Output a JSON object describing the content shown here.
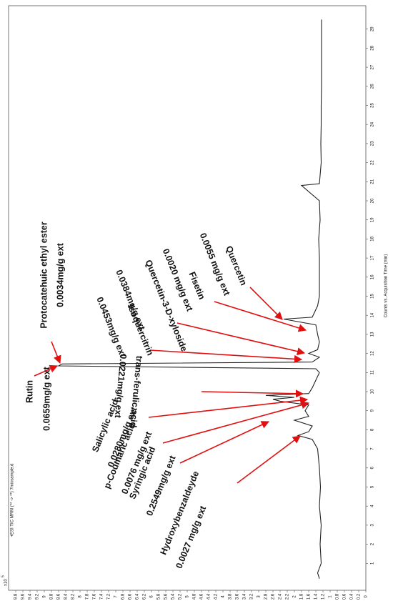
{
  "chart_data": {
    "type": "line",
    "title": "+ESI TIC MRM (** -> **) 7mixsample.d",
    "y_scale": {
      "base": "x10",
      "exponent": "5"
    },
    "xlabel": "Counts vs. Acquisition Time (min)",
    "color": "#222222",
    "x": [
      0.2,
      0.5,
      1,
      2,
      3,
      4,
      5,
      6,
      7,
      7.5,
      7.7,
      7.9,
      8.2,
      8.5,
      8.7,
      9.0,
      9.3,
      9.5,
      9.6,
      9.7,
      9.8,
      9.9,
      10.2,
      10.6,
      11.0,
      11.2,
      11.35,
      11.45,
      11.55,
      11.8,
      12.0,
      12.2,
      12.6,
      13.0,
      13.5,
      13.8,
      13.9,
      14.5,
      15,
      16,
      17,
      18,
      19,
      20,
      20.8,
      20.9,
      22,
      23,
      24,
      25,
      26,
      27,
      28,
      29,
      29.5
    ],
    "values": [
      1.3,
      1.35,
      1.25,
      1.28,
      1.25,
      1.3,
      1.27,
      1.3,
      1.35,
      1.5,
      1.9,
      1.6,
      1.5,
      2.0,
      1.6,
      1.7,
      1.6,
      2.4,
      2.6,
      2.0,
      2.8,
      1.6,
      1.5,
      1.4,
      1.3,
      1.4,
      8.6,
      8.5,
      1.5,
      1.3,
      1.6,
      1.35,
      1.3,
      1.35,
      1.4,
      2.3,
      1.5,
      1.35,
      1.3,
      1.3,
      1.3,
      1.32,
      1.28,
      1.3,
      1.8,
      1.3,
      1.25,
      1.26,
      1.25,
      1.25,
      1.24,
      1.24,
      1.24,
      1.24,
      1.24
    ],
    "xlim": [
      0,
      30
    ],
    "xticks": [
      1,
      2,
      3,
      4,
      5,
      6,
      7,
      8,
      9,
      10,
      11,
      12,
      13,
      14,
      15,
      16,
      17,
      18,
      19,
      20,
      21,
      22,
      23,
      24,
      25,
      26,
      27,
      28,
      29
    ],
    "ylim": [
      0,
      10
    ],
    "yticks": [
      0,
      0.2,
      0.4,
      0.6,
      0.8,
      1,
      1.2,
      1.4,
      1.6,
      1.8,
      2,
      2.2,
      2.4,
      2.6,
      2.8,
      3,
      3.2,
      3.4,
      3.6,
      3.8,
      4,
      4.2,
      4.4,
      4.6,
      4.8,
      5,
      5.2,
      5.4,
      5.6,
      5.8,
      6,
      6.2,
      6.4,
      6.6,
      6.8,
      7,
      7.2,
      7.4,
      7.6,
      7.8,
      8,
      8.2,
      8.4,
      8.6,
      8.8,
      9,
      9.2,
      9.4,
      9.6,
      9.8
    ],
    "annotations": [
      {
        "label": "Rutin",
        "detail": "0.0659mg/g ext"
      },
      {
        "label": "Protocatehuic ethyl ester",
        "detail": "0.0034mg/g ext"
      },
      {
        "label": "Quercetin",
        "detail": "0.0055 mg/g ext"
      },
      {
        "label": "Fisetin",
        "detail": "0.0020 mg/g ext"
      },
      {
        "label": "Quercetin-3-D-xyloside",
        "detail": "0.0384mg/g ext"
      },
      {
        "label": "Isoquercitrin",
        "detail": "0.0453mg/g ext"
      },
      {
        "label": "trans-ferulic acid",
        "detail": "0.0221mg/g ext"
      },
      {
        "label": "Salicylic acid",
        "detail": "0.0280mg/g ext"
      },
      {
        "label": "p-Coumaric acid",
        "detail": "0.0076 mg/g ext"
      },
      {
        "label": "Syringic acid",
        "detail": "0.2549mg/g ext"
      },
      {
        "label": "Hydroxybenzaldeyde",
        "detail": "0.0027 mg/g ext"
      }
    ]
  }
}
